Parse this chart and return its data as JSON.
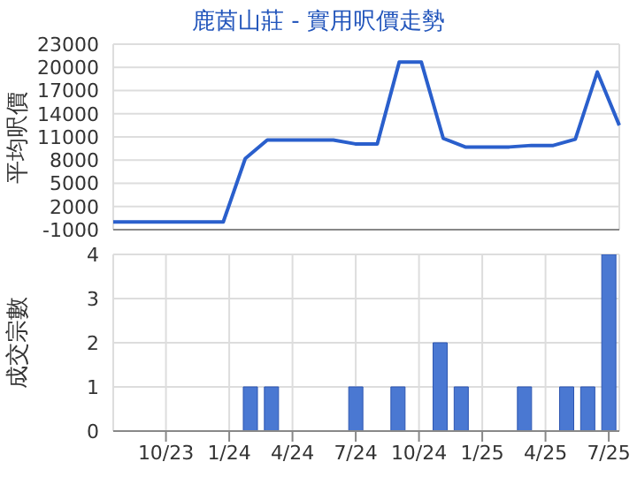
{
  "chart_data": [
    {
      "type": "line",
      "title": "鹿茵山莊 - 實用呎價走勢",
      "ylabel": "平均呎價",
      "categories": [
        null,
        null,
        null,
        null,
        null,
        null,
        null,
        null,
        null,
        null,
        null,
        null,
        null,
        null,
        null,
        null,
        null,
        null,
        null,
        null,
        null,
        null,
        null,
        null
      ],
      "series": [
        {
          "color": "#2a5fcc",
          "values": [
            0,
            0,
            0,
            0,
            0,
            0,
            8200,
            10600,
            10600,
            10600,
            10600,
            10100,
            10100,
            20700,
            20700,
            10800,
            9700,
            9700,
            9700,
            9900,
            9900,
            10700,
            19400,
            12500
          ]
        }
      ],
      "ylim": [
        -1000,
        23000
      ],
      "yticks": [
        -1000,
        2000,
        5000,
        8000,
        11000,
        14000,
        17000,
        20000,
        23000
      ],
      "grid": true,
      "tick_labels": "y"
    },
    {
      "type": "bar",
      "ylabel": "成交宗數",
      "categories": [
        null,
        null,
        "10/23",
        null,
        null,
        "1/24",
        null,
        null,
        "4/24",
        null,
        null,
        "7/24",
        null,
        null,
        "10/24",
        null,
        null,
        "1/25",
        null,
        null,
        "4/25",
        null,
        null,
        "7/25"
      ],
      "values": [
        null,
        null,
        null,
        null,
        null,
        null,
        1,
        1,
        null,
        null,
        null,
        1,
        null,
        1,
        null,
        2,
        1,
        null,
        null,
        1,
        null,
        1,
        1,
        4
      ],
      "color": "#4a78d2",
      "ylim": [
        0,
        4
      ],
      "yticks": [
        0,
        1,
        2,
        3,
        4
      ],
      "grid": true
    }
  ]
}
